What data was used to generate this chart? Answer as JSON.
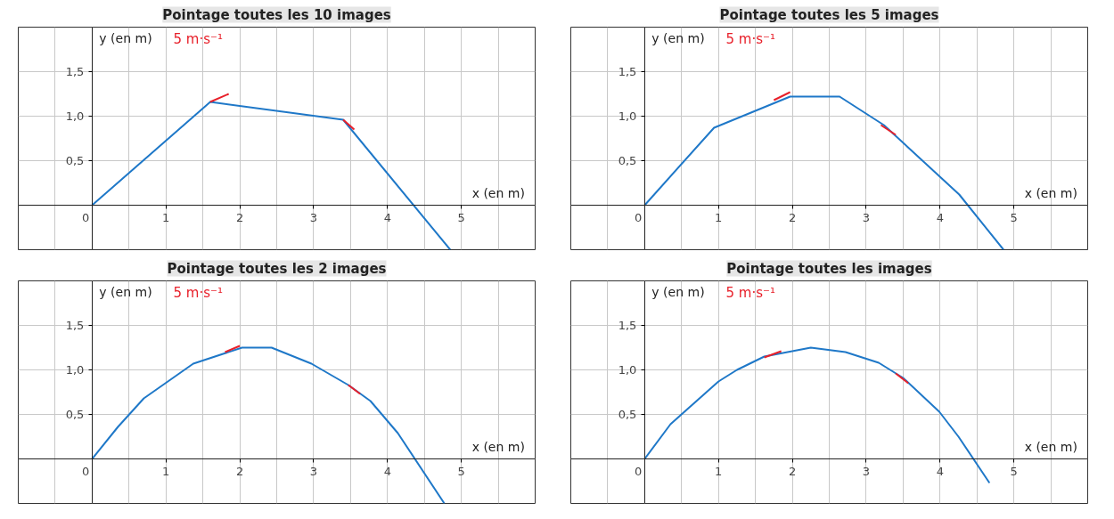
{
  "chart_data": [
    {
      "type": "line",
      "title": "Pointage toutes les 10 images",
      "xlabel": "x (en m)",
      "ylabel": "y (en m)",
      "annotations": [
        "5 m·s⁻¹"
      ],
      "xlim": [
        -1,
        6
      ],
      "ylim": [
        -0.5,
        2
      ],
      "xticks": [
        {
          "value": -0.5,
          "label": null
        },
        {
          "value": 0,
          "label": "0"
        },
        {
          "value": 0.5,
          "label": null
        },
        1,
        {
          "value": 1.5,
          "label": null
        },
        2,
        {
          "value": 2.5,
          "label": null
        },
        3,
        {
          "value": 3.5,
          "label": null
        },
        4,
        {
          "value": 4.5,
          "label": null
        },
        5,
        {
          "value": 5.5,
          "label": null
        }
      ],
      "yticks": [
        {
          "value": 0.5,
          "label": "0,5"
        },
        {
          "value": 1,
          "label": "1,0"
        },
        {
          "value": 1.5,
          "label": "1,5"
        }
      ],
      "grid": true,
      "marker": "none",
      "line_style": "solid",
      "series": [
        {
          "color": "#1f78c8",
          "x": [
            0,
            1.6,
            3.4,
            4.85
          ],
          "values": [
            0,
            1.16,
            0.96,
            -0.5
          ]
        },
        {
          "color": "#e8202a",
          "x": [
            1.6,
            1.85
          ],
          "values": [
            1.16,
            1.25
          ]
        },
        {
          "color": "#e8202a",
          "x": [
            3.4,
            3.55
          ],
          "values": [
            0.96,
            0.85
          ]
        }
      ]
    },
    {
      "type": "line",
      "title": "Pointage toutes les 5 images",
      "xlabel": "x (en m)",
      "ylabel": "y (en m)",
      "annotations": [
        "5 m·s⁻¹"
      ],
      "xlim": [
        -1,
        6
      ],
      "ylim": [
        -0.5,
        2
      ],
      "xticks": [
        {
          "value": -0.5,
          "label": null
        },
        {
          "value": 0,
          "label": "0"
        },
        {
          "value": 0.5,
          "label": null
        },
        1,
        {
          "value": 1.5,
          "label": null
        },
        2,
        {
          "value": 2.5,
          "label": null
        },
        3,
        {
          "value": 3.5,
          "label": null
        },
        4,
        {
          "value": 4.5,
          "label": null
        },
        5,
        {
          "value": 5.5,
          "label": null
        }
      ],
      "yticks": [
        {
          "value": 0.5,
          "label": "0,5"
        },
        {
          "value": 1,
          "label": "1,0"
        },
        {
          "value": 1.5,
          "label": "1,5"
        }
      ],
      "grid": true,
      "marker": "none",
      "line_style": "solid",
      "series": [
        {
          "color": "#1f78c8",
          "x": [
            0,
            0.94,
            1.97,
            2.64,
            3.24,
            4.26,
            4.86
          ],
          "values": [
            0,
            0.87,
            1.22,
            1.22,
            0.9,
            0.12,
            -0.5
          ]
        },
        {
          "color": "#e8202a",
          "x": [
            1.75,
            1.97
          ],
          "values": [
            1.18,
            1.27
          ]
        },
        {
          "color": "#e8202a",
          "x": [
            3.2,
            3.4
          ],
          "values": [
            0.9,
            0.79
          ]
        }
      ]
    },
    {
      "type": "line",
      "title": "Pointage toutes les 2 images",
      "xlabel": "x (en m)",
      "ylabel": "y (en m)",
      "annotations": [
        "5 m·s⁻¹"
      ],
      "xlim": [
        -1,
        6
      ],
      "ylim": [
        -0.5,
        2
      ],
      "xticks": [
        {
          "value": -0.5,
          "label": null
        },
        {
          "value": 0,
          "label": "0"
        },
        {
          "value": 0.5,
          "label": null
        },
        1,
        {
          "value": 1.5,
          "label": null
        },
        2,
        {
          "value": 2.5,
          "label": null
        },
        3,
        {
          "value": 3.5,
          "label": null
        },
        4,
        {
          "value": 4.5,
          "label": null
        },
        5,
        {
          "value": 5.5,
          "label": null
        }
      ],
      "yticks": [
        {
          "value": 0.5,
          "label": "0,5"
        },
        {
          "value": 1,
          "label": "1,0"
        },
        {
          "value": 1.5,
          "label": "1,5"
        }
      ],
      "grid": true,
      "marker": "none",
      "line_style": "solid",
      "series": [
        {
          "color": "#1f78c8",
          "x": [
            0,
            0.35,
            0.7,
            1.37,
            2.03,
            2.43,
            2.97,
            3.47,
            3.77,
            4.14,
            4.77
          ],
          "values": [
            0,
            0.36,
            0.68,
            1.07,
            1.25,
            1.25,
            1.07,
            0.83,
            0.65,
            0.29,
            -0.5
          ]
        },
        {
          "color": "#e8202a",
          "x": [
            1.8,
            2.0
          ],
          "values": [
            1.2,
            1.27
          ]
        },
        {
          "color": "#e8202a",
          "x": [
            3.47,
            3.63
          ],
          "values": [
            0.83,
            0.73
          ]
        }
      ]
    },
    {
      "type": "line",
      "title": "Pointage toutes les images",
      "xlabel": "x (en m)",
      "ylabel": "y (en m)",
      "annotations": [
        "5 m·s⁻¹"
      ],
      "xlim": [
        -1,
        6
      ],
      "ylim": [
        -0.5,
        2
      ],
      "xticks": [
        {
          "value": -0.5,
          "label": null
        },
        {
          "value": 0,
          "label": "0"
        },
        {
          "value": 0.5,
          "label": null
        },
        1,
        {
          "value": 1.5,
          "label": null
        },
        2,
        {
          "value": 2.5,
          "label": null
        },
        3,
        {
          "value": 3.5,
          "label": null
        },
        4,
        {
          "value": 4.5,
          "label": null
        },
        5,
        {
          "value": 5.5,
          "label": null
        }
      ],
      "yticks": [
        {
          "value": 0.5,
          "label": "0,5"
        },
        {
          "value": 1,
          "label": "1,0"
        },
        {
          "value": 1.5,
          "label": "1,5"
        }
      ],
      "grid": true,
      "marker": "none",
      "line_style": "solid",
      "series": [
        {
          "color": "#1f78c8",
          "x": [
            0,
            0.35,
            1.0,
            1.25,
            1.62,
            2.25,
            2.72,
            3.17,
            3.5,
            3.99,
            4.25,
            4.67
          ],
          "values": [
            0,
            0.39,
            0.87,
            1.0,
            1.15,
            1.25,
            1.2,
            1.08,
            0.91,
            0.53,
            0.25,
            -0.27
          ]
        },
        {
          "color": "#e8202a",
          "x": [
            1.62,
            1.85
          ],
          "values": [
            1.14,
            1.21
          ]
        },
        {
          "color": "#e8202a",
          "x": [
            3.4,
            3.57
          ],
          "values": [
            0.96,
            0.85
          ]
        }
      ]
    }
  ]
}
